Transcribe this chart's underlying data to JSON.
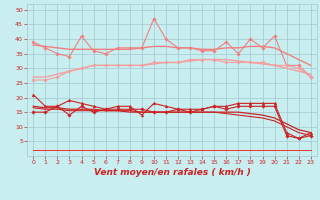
{
  "x": [
    0,
    1,
    2,
    3,
    4,
    5,
    6,
    7,
    8,
    9,
    10,
    11,
    12,
    13,
    14,
    15,
    16,
    17,
    18,
    19,
    20,
    21,
    22,
    23
  ],
  "series": [
    {
      "label": "rafales_max",
      "color": "#f08080",
      "linewidth": 0.8,
      "marker": "D",
      "markersize": 1.8,
      "y": [
        39,
        37,
        35,
        34,
        41,
        36,
        35,
        37,
        37,
        37,
        47,
        40,
        37,
        37,
        36,
        36,
        39,
        35,
        40,
        37,
        41,
        31,
        31,
        27
      ]
    },
    {
      "label": "rafales_smooth",
      "color": "#f08080",
      "linewidth": 1.0,
      "marker": null,
      "markersize": 0,
      "y": [
        38,
        37.5,
        37,
        36.5,
        36.5,
        36.5,
        36.5,
        36.5,
        36.5,
        37,
        37.5,
        37.5,
        37,
        37,
        36.5,
        36.5,
        37,
        37,
        37.5,
        37.5,
        37,
        35,
        33,
        31
      ]
    },
    {
      "label": "vent_moyen_upper",
      "color": "#f4a0a0",
      "linewidth": 0.8,
      "marker": "D",
      "markersize": 1.8,
      "y": [
        26,
        26,
        27,
        29,
        30,
        31,
        31,
        31,
        31,
        31,
        32,
        32,
        32,
        33,
        33,
        33,
        32,
        32,
        32,
        32,
        31,
        31,
        30,
        27
      ]
    },
    {
      "label": "vent_smooth",
      "color": "#f4a0a0",
      "linewidth": 1.0,
      "marker": null,
      "markersize": 0,
      "y": [
        27,
        27,
        28,
        29,
        30,
        31,
        31,
        31,
        31,
        31,
        31.5,
        32,
        32,
        32.5,
        33,
        33,
        33,
        32.5,
        32,
        31.5,
        31,
        30,
        29,
        28
      ]
    },
    {
      "label": "vent_max",
      "color": "#cc2222",
      "linewidth": 0.8,
      "marker": "^",
      "markersize": 2.0,
      "y": [
        21,
        17,
        17,
        19,
        18,
        17,
        16,
        17,
        17,
        14,
        18,
        17,
        16,
        16,
        16,
        17,
        17,
        18,
        18,
        18,
        18,
        8,
        6,
        8
      ]
    },
    {
      "label": "vent_lower",
      "color": "#cc2222",
      "linewidth": 0.8,
      "marker": "D",
      "markersize": 1.8,
      "y": [
        15,
        15,
        17,
        14,
        17,
        15,
        16,
        16,
        16,
        16,
        15,
        15,
        16,
        15,
        16,
        17,
        16,
        17,
        17,
        17,
        17,
        7,
        6,
        7
      ]
    },
    {
      "label": "vent_line1",
      "color": "#cc2222",
      "linewidth": 0.8,
      "marker": null,
      "markersize": 0,
      "y": [
        16.5,
        16,
        16,
        15.5,
        15.5,
        15.5,
        15.5,
        15.5,
        15,
        15,
        15,
        15,
        15,
        15,
        15,
        15,
        14.5,
        14,
        13.5,
        13,
        12,
        10,
        8,
        7
      ]
    },
    {
      "label": "vent_line2",
      "color": "#cc2222",
      "linewidth": 0.9,
      "marker": null,
      "markersize": 0,
      "y": [
        17,
        16.5,
        16.5,
        16,
        16,
        16,
        15.5,
        15.5,
        15.5,
        15,
        15,
        15,
        15,
        15,
        15,
        15,
        15,
        15,
        14.5,
        14,
        13,
        11,
        9,
        8
      ]
    },
    {
      "label": "vent_bottom",
      "color": "#ee3333",
      "linewidth": 0.7,
      "marker": null,
      "markersize": 0,
      "y": [
        2,
        2,
        2,
        2,
        2,
        2,
        2,
        2,
        2,
        2,
        2,
        2,
        2,
        2,
        2,
        2,
        2,
        2,
        2,
        2,
        2,
        2,
        2,
        2
      ]
    }
  ],
  "xlabel": "Vent moyen/en rafales ( km/h )",
  "xlim": [
    -0.5,
    23.5
  ],
  "ylim": [
    0,
    52
  ],
  "yticks": [
    5,
    10,
    15,
    20,
    25,
    30,
    35,
    40,
    45,
    50
  ],
  "xticks": [
    0,
    1,
    2,
    3,
    4,
    5,
    6,
    7,
    8,
    9,
    10,
    11,
    12,
    13,
    14,
    15,
    16,
    17,
    18,
    19,
    20,
    21,
    22,
    23
  ],
  "bg_color": "#c8eef0",
  "grid_color": "#a0c8d0"
}
